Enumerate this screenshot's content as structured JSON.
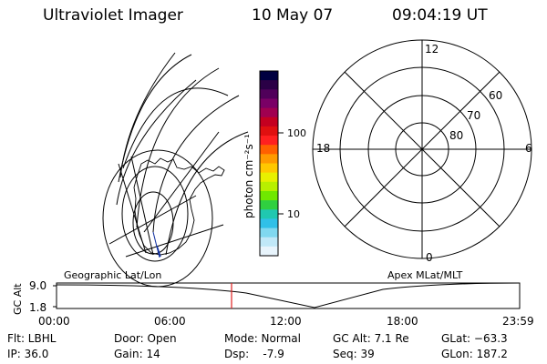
{
  "header": {
    "title": "Ultraviolet Imager",
    "date": "10 May 07",
    "time": "09:04:19 UT"
  },
  "colorbar": {
    "label": "photon cm⁻²s⁻¹",
    "tick_100": "100",
    "tick_10": "10",
    "colors": [
      "#000040",
      "#2a0046",
      "#50005a",
      "#7a0066",
      "#a00050",
      "#c40020",
      "#e01010",
      "#ff2020",
      "#ff6000",
      "#ff9a00",
      "#ffc800",
      "#e8f000",
      "#b8f000",
      "#70e800",
      "#30d040",
      "#20c8b0",
      "#30c0e8",
      "#80d8f0",
      "#c0e8f8",
      "#e8f4fc"
    ]
  },
  "polar": {
    "lat_labels": [
      "80",
      "70",
      "60"
    ],
    "mlt_labels": {
      "top": "12",
      "left": "18",
      "right": "6",
      "bottom": "0"
    }
  },
  "timeline": {
    "left_label": "Geographic Lat/Lon",
    "right_label": "Apex MLat/MLT",
    "yaxis_label": "GC Alt",
    "y_ticks": [
      "9.0",
      "1.8"
    ],
    "x_ticks": [
      "00:00",
      "06:00",
      "12:00",
      "18:00",
      "23:59"
    ],
    "current_time_fraction": 0.378
  },
  "footer": {
    "flt": "Flt: LBHL",
    "ip": "IP: 36.0",
    "door": "Door: Open",
    "gain": "Gain: 14",
    "mode": "Mode: Normal",
    "dsp": "Dsp:    -7.9",
    "gcalt": "GC Alt: 7.1 Re",
    "seq": "Seq: 39",
    "glat": "GLat: −63.3",
    "glon": "GLon: 187.2"
  }
}
